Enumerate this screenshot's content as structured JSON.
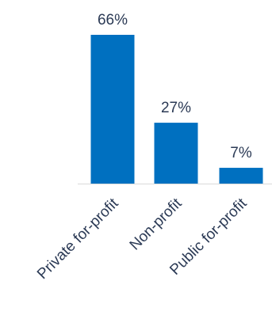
{
  "chart_data": {
    "type": "bar",
    "categories": [
      "Private for-profit",
      "Non-profit",
      "Public for-profit"
    ],
    "values": [
      66,
      27,
      7
    ],
    "data_labels": [
      "66%",
      "27%",
      "7%"
    ],
    "title": "",
    "xlabel": "",
    "ylabel": "",
    "ylim": [
      0,
      66
    ],
    "grid": false,
    "legend": "none",
    "colors": {
      "bar": "#0070c0",
      "baseline": "#d9d9d9",
      "text": "#2b3a55"
    }
  }
}
